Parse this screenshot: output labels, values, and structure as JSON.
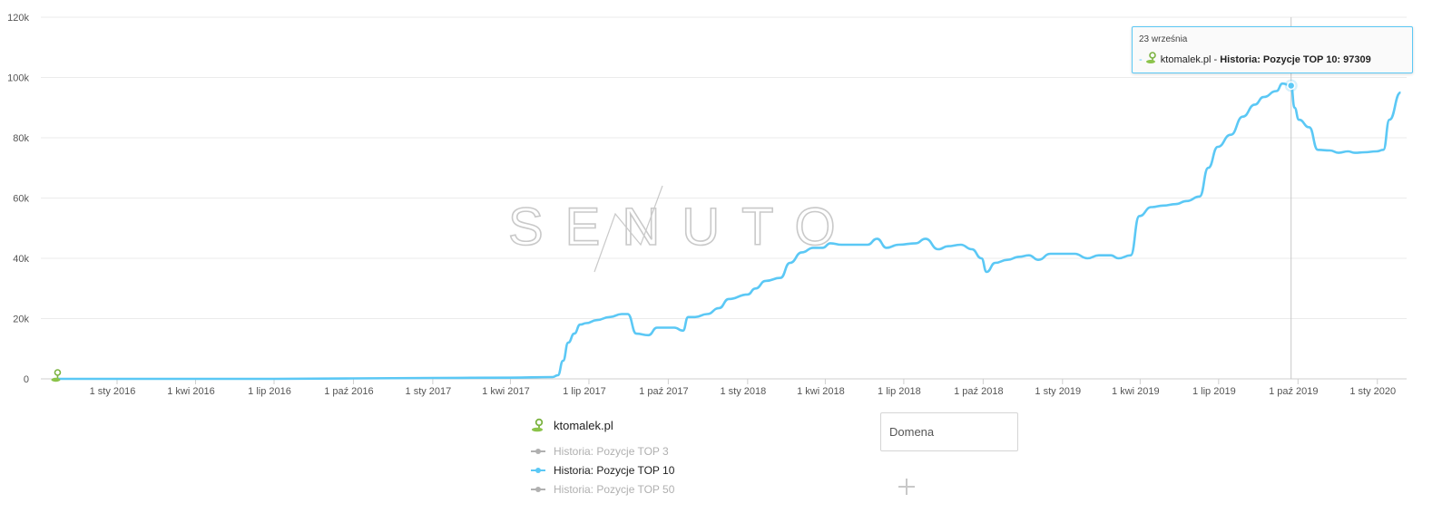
{
  "chart_data": {
    "type": "line",
    "ylim": [
      0,
      120000
    ],
    "y_ticks": [
      0,
      20000,
      40000,
      60000,
      80000,
      100000,
      120000
    ],
    "y_tick_labels": [
      "0",
      "20k",
      "40k",
      "60k",
      "80k",
      "100k",
      "120k"
    ],
    "x_tick_labels": [
      "1 sty 2016",
      "1 kwi 2016",
      "1 lip 2016",
      "1 paź 2016",
      "1 sty 2017",
      "1 kwi 2017",
      "1 lip 2017",
      "1 paź 2017",
      "1 sty 2018",
      "1 kwi 2018",
      "1 lip 2018",
      "1 paź 2018",
      "1 sty 2019",
      "1 kwi 2019",
      "1 lip 2019",
      "1 paź 2019",
      "1 sty 2020"
    ],
    "x_tick_dates": [
      "2016-01-01",
      "2016-04-01",
      "2016-07-01",
      "2016-10-01",
      "2017-01-01",
      "2017-04-01",
      "2017-07-01",
      "2017-10-01",
      "2018-01-01",
      "2018-04-01",
      "2018-07-01",
      "2018-10-01",
      "2019-01-01",
      "2019-04-01",
      "2019-07-01",
      "2019-10-01",
      "2020-01-01"
    ],
    "grid": true,
    "legend_position": "bottom-center",
    "series": [
      {
        "name": "Historia: Pozycje TOP 10",
        "color": "#5bc8f5",
        "points": [
          [
            "2015-10-23",
            0
          ],
          [
            "2016-07-01",
            0
          ],
          [
            "2017-01-01",
            300
          ],
          [
            "2017-04-01",
            400
          ],
          [
            "2017-05-20",
            600
          ],
          [
            "2017-05-26",
            1200
          ],
          [
            "2017-06-01",
            6000
          ],
          [
            "2017-06-07",
            12000
          ],
          [
            "2017-06-14",
            15000
          ],
          [
            "2017-06-21",
            18000
          ],
          [
            "2017-06-28",
            18500
          ],
          [
            "2017-07-10",
            19500
          ],
          [
            "2017-07-25",
            20500
          ],
          [
            "2017-08-08",
            21500
          ],
          [
            "2017-08-15",
            21500
          ],
          [
            "2017-08-25",
            15000
          ],
          [
            "2017-09-08",
            14500
          ],
          [
            "2017-09-18",
            17000
          ],
          [
            "2017-10-01",
            17000
          ],
          [
            "2017-10-08",
            17000
          ],
          [
            "2017-10-18",
            16000
          ],
          [
            "2017-10-24",
            20500
          ],
          [
            "2017-11-01",
            20500
          ],
          [
            "2017-11-15",
            21500
          ],
          [
            "2017-11-29",
            23500
          ],
          [
            "2017-12-10",
            26500
          ],
          [
            "2018-01-01",
            28000
          ],
          [
            "2018-01-10",
            30000
          ],
          [
            "2018-01-22",
            32500
          ],
          [
            "2018-02-08",
            33500
          ],
          [
            "2018-02-19",
            38500
          ],
          [
            "2018-03-05",
            42000
          ],
          [
            "2018-03-18",
            43500
          ],
          [
            "2018-03-29",
            43500
          ],
          [
            "2018-04-07",
            45000
          ],
          [
            "2018-04-20",
            44500
          ],
          [
            "2018-05-05",
            44500
          ],
          [
            "2018-05-20",
            44500
          ],
          [
            "2018-05-31",
            46500
          ],
          [
            "2018-06-11",
            43500
          ],
          [
            "2018-06-25",
            44500
          ],
          [
            "2018-07-15",
            45000
          ],
          [
            "2018-07-26",
            46500
          ],
          [
            "2018-08-10",
            43000
          ],
          [
            "2018-08-21",
            44000
          ],
          [
            "2018-09-05",
            44500
          ],
          [
            "2018-09-18",
            43000
          ],
          [
            "2018-09-29",
            40000
          ],
          [
            "2018-10-05",
            35500
          ],
          [
            "2018-10-15",
            38500
          ],
          [
            "2018-10-29",
            39500
          ],
          [
            "2018-11-12",
            40500
          ],
          [
            "2018-11-23",
            41000
          ],
          [
            "2018-12-04",
            39500
          ],
          [
            "2018-12-18",
            41500
          ],
          [
            "2019-01-05",
            41500
          ],
          [
            "2019-01-15",
            41500
          ],
          [
            "2019-01-30",
            40000
          ],
          [
            "2019-02-12",
            41000
          ],
          [
            "2019-02-26",
            41000
          ],
          [
            "2019-03-07",
            40000
          ],
          [
            "2019-03-21",
            41000
          ],
          [
            "2019-03-31",
            54000
          ],
          [
            "2019-04-14",
            57000
          ],
          [
            "2019-04-28",
            57500
          ],
          [
            "2019-05-12",
            58000
          ],
          [
            "2019-05-25",
            59000
          ],
          [
            "2019-06-09",
            60500
          ],
          [
            "2019-06-19",
            70000
          ],
          [
            "2019-06-30",
            77000
          ],
          [
            "2019-07-15",
            81000
          ],
          [
            "2019-07-29",
            87000
          ],
          [
            "2019-08-12",
            91000
          ],
          [
            "2019-08-22",
            93500
          ],
          [
            "2019-09-06",
            95500
          ],
          [
            "2019-09-13",
            98000
          ],
          [
            "2019-09-23",
            97309
          ],
          [
            "2019-09-27",
            90000
          ],
          [
            "2019-10-02",
            86000
          ],
          [
            "2019-10-14",
            83500
          ],
          [
            "2019-10-24",
            76000
          ],
          [
            "2019-11-07",
            75800
          ],
          [
            "2019-11-17",
            75000
          ],
          [
            "2019-11-28",
            75500
          ],
          [
            "2019-12-06",
            75000
          ],
          [
            "2019-12-17",
            75200
          ],
          [
            "2019-12-31",
            75500
          ],
          [
            "2020-01-08",
            76000
          ],
          [
            "2020-01-15",
            86000
          ],
          [
            "2020-01-28",
            95000
          ]
        ]
      }
    ],
    "highlight": {
      "date": "2019-09-23",
      "value": 97309
    }
  },
  "tooltip": {
    "date": "23 września",
    "domain": "ktomalek.pl",
    "series_label": "Historia: Pozycje TOP 10: 97309"
  },
  "watermark": {
    "text": "SENUTO"
  },
  "legend": {
    "site": "ktomalek.pl",
    "items": [
      {
        "label": "Historia: Pozycje TOP 3",
        "active": false
      },
      {
        "label": "Historia: Pozycje TOP 10",
        "active": true
      },
      {
        "label": "Historia: Pozycje TOP 50",
        "active": false
      }
    ]
  },
  "domain_input": {
    "placeholder": "Domena",
    "value": ""
  },
  "icons": {
    "site": "domain-marker-icon",
    "add": "plus-icon"
  }
}
